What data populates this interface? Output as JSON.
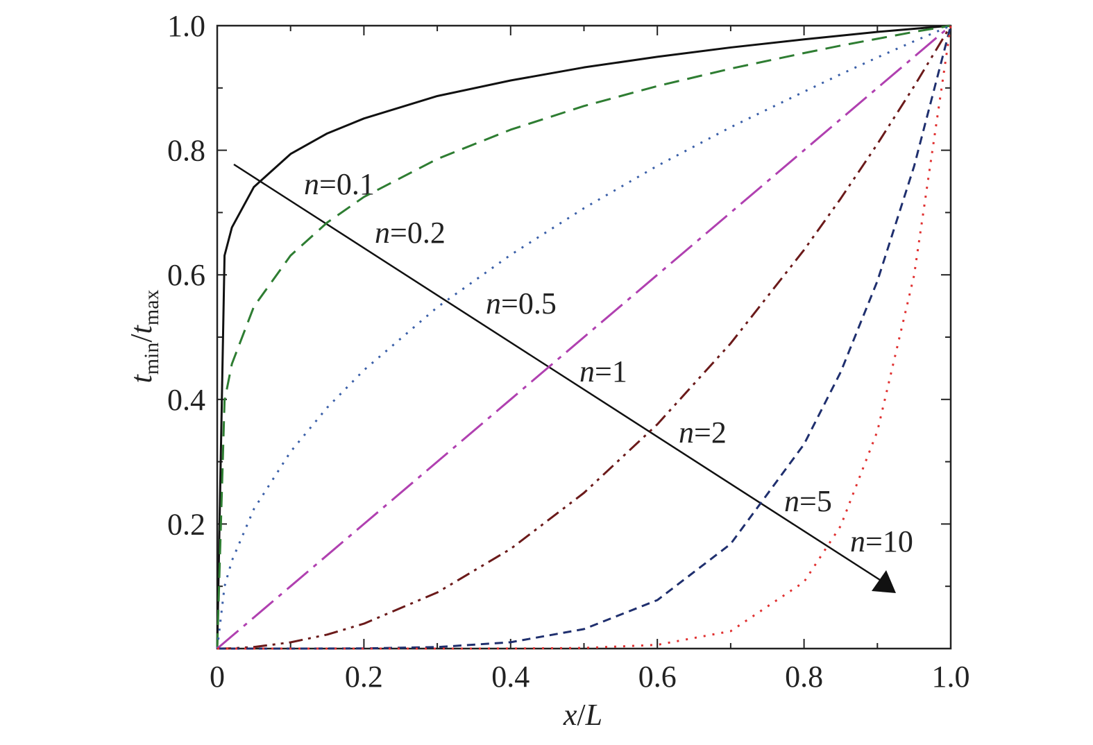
{
  "chart_data": {
    "type": "line",
    "xlabel": [
      "x",
      "/",
      "L"
    ],
    "ylabel": [
      "t",
      "min",
      "/",
      "t",
      "max"
    ],
    "x": [
      0,
      0.01,
      0.02,
      0.05,
      0.1,
      0.15,
      0.2,
      0.3,
      0.4,
      0.5,
      0.6,
      0.7,
      0.8,
      0.85,
      0.9,
      0.95,
      1.0
    ],
    "series": [
      {
        "name": "n=0.1",
        "color": "#111111",
        "dash": "solid",
        "values": [
          0,
          0.631,
          0.676,
          0.741,
          0.794,
          0.827,
          0.851,
          0.887,
          0.912,
          0.933,
          0.95,
          0.965,
          0.978,
          0.984,
          0.99,
          0.995,
          1.0
        ]
      },
      {
        "name": "n=0.2",
        "color": "#2e7d32",
        "dash": "dashed",
        "values": [
          0,
          0.398,
          0.457,
          0.549,
          0.631,
          0.684,
          0.725,
          0.786,
          0.833,
          0.871,
          0.903,
          0.931,
          0.956,
          0.968,
          0.979,
          0.99,
          1.0
        ]
      },
      {
        "name": "n=0.5",
        "color": "#3a5fa8",
        "dash": "dotted",
        "values": [
          0,
          0.1,
          0.141,
          0.224,
          0.316,
          0.387,
          0.447,
          0.548,
          0.632,
          0.707,
          0.775,
          0.837,
          0.894,
          0.922,
          0.949,
          0.975,
          1.0
        ]
      },
      {
        "name": "n=1",
        "color": "#b040b0",
        "dash": "dashdot",
        "values": [
          0,
          0.01,
          0.02,
          0.05,
          0.1,
          0.15,
          0.2,
          0.3,
          0.4,
          0.5,
          0.6,
          0.7,
          0.8,
          0.85,
          0.9,
          0.95,
          1.0
        ]
      },
      {
        "name": "n=2",
        "color": "#6b1a1a",
        "dash": "dashdotdot",
        "values": [
          0,
          0.0001,
          0.0004,
          0.0025,
          0.01,
          0.0225,
          0.04,
          0.09,
          0.16,
          0.25,
          0.36,
          0.49,
          0.64,
          0.7225,
          0.81,
          0.9025,
          1.0
        ]
      },
      {
        "name": "n=5",
        "color": "#1f2f6e",
        "dash": "shortdash",
        "values": [
          0,
          0,
          0,
          0,
          1e-05,
          0.0001,
          0.0003,
          0.0024,
          0.0102,
          0.0313,
          0.0778,
          0.168,
          0.328,
          0.444,
          0.59,
          0.774,
          1.0
        ]
      },
      {
        "name": "n=10",
        "color": "#e03030",
        "dash": "dotted",
        "values": [
          0,
          0,
          0,
          0,
          0,
          0,
          0,
          0,
          0.0001,
          0.001,
          0.006,
          0.028,
          0.107,
          0.197,
          0.349,
          0.599,
          1.0
        ]
      }
    ],
    "xlim": [
      0,
      1.0
    ],
    "ylim": [
      0,
      1.0
    ],
    "xticks": [
      0,
      0.2,
      0.4,
      0.6,
      0.8,
      {
        "value": 1.0,
        "label": "1.0"
      }
    ],
    "yticks": [
      0.2,
      0.4,
      0.6,
      0.8,
      {
        "value": 1.0,
        "label": "1.0"
      }
    ],
    "xminorticks": [
      0.1,
      0.3,
      0.5,
      0.7,
      0.9
    ],
    "yminorticks": [
      0.1,
      0.3,
      0.5,
      0.7,
      0.9
    ]
  }
}
